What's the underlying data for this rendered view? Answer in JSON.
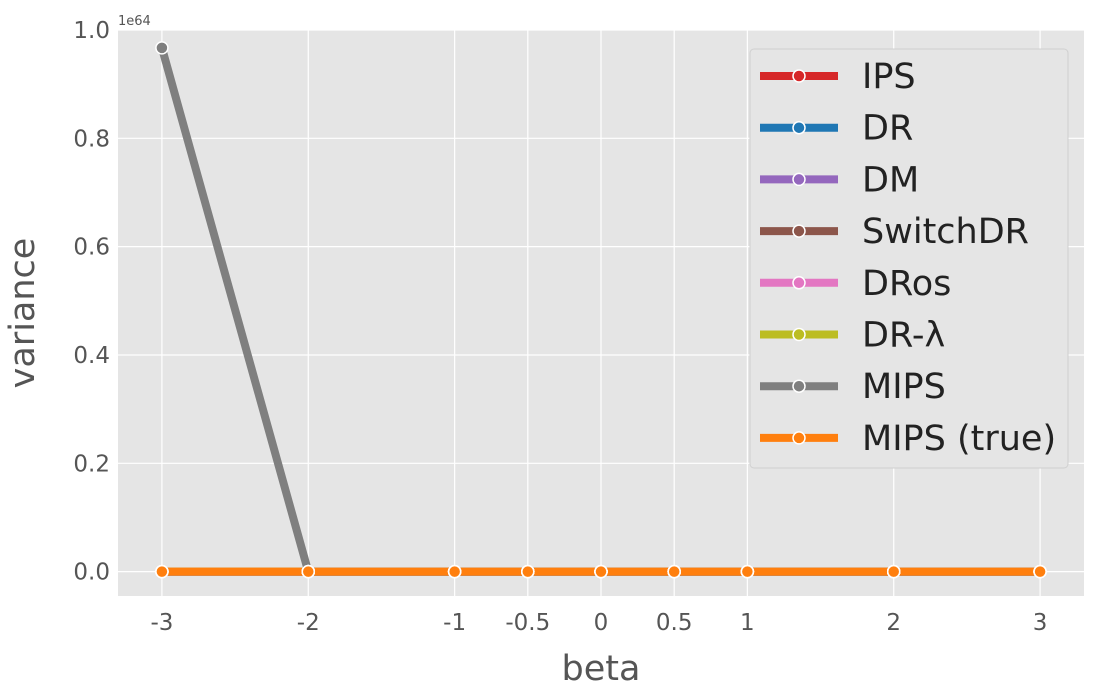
{
  "chart_data": {
    "type": "line",
    "x": [
      -3,
      -2,
      -1,
      -0.5,
      0,
      0.5,
      1,
      2,
      3
    ],
    "x_tick_labels": [
      "-3",
      "-2",
      "-1",
      "-0.5",
      "0",
      "0.5",
      "1",
      "2",
      "3"
    ],
    "xlim": [
      -3.3,
      3.3
    ],
    "ylim": [
      -0.045,
      1.0
    ],
    "y_ticks": [
      0.0,
      0.2,
      0.4,
      0.6,
      0.8,
      1.0
    ],
    "y_tick_labels": [
      "0.0",
      "0.2",
      "0.4",
      "0.6",
      "0.8",
      "1.0"
    ],
    "y_offset_text": "1e64",
    "xlabel": "beta",
    "ylabel": "variance",
    "title": "",
    "grid": true,
    "background": "#e5e5e5",
    "legend_position": "top-right",
    "series": [
      {
        "name": "IPS",
        "color": "#d62728",
        "values": [
          0,
          0,
          0,
          0,
          0,
          0,
          0,
          0,
          0
        ]
      },
      {
        "name": "DR",
        "color": "#1f77b4",
        "values": [
          0,
          0,
          0,
          0,
          0,
          0,
          0,
          0,
          0
        ]
      },
      {
        "name": "DM",
        "color": "#9467bd",
        "values": [
          0,
          0,
          0,
          0,
          0,
          0,
          0,
          0,
          0
        ]
      },
      {
        "name": "SwitchDR",
        "color": "#8c564b",
        "values": [
          0,
          0,
          0,
          0,
          0,
          0,
          0,
          0,
          0
        ]
      },
      {
        "name": "DRos",
        "color": "#e377c2",
        "values": [
          0,
          0,
          0,
          0,
          0,
          0,
          0,
          0,
          0
        ]
      },
      {
        "name": "DR-λ",
        "color": "#bcbd22",
        "values": [
          0,
          0,
          0,
          0,
          0,
          0,
          0,
          0,
          0
        ]
      },
      {
        "name": "MIPS",
        "color": "#7f7f7f",
        "values": [
          0.967,
          0,
          0,
          0,
          0,
          0,
          0,
          0,
          0
        ]
      },
      {
        "name": "MIPS (true)",
        "color": "#ff7f0e",
        "values": [
          0,
          0,
          0,
          0,
          0,
          0,
          0,
          0,
          0
        ]
      }
    ]
  }
}
